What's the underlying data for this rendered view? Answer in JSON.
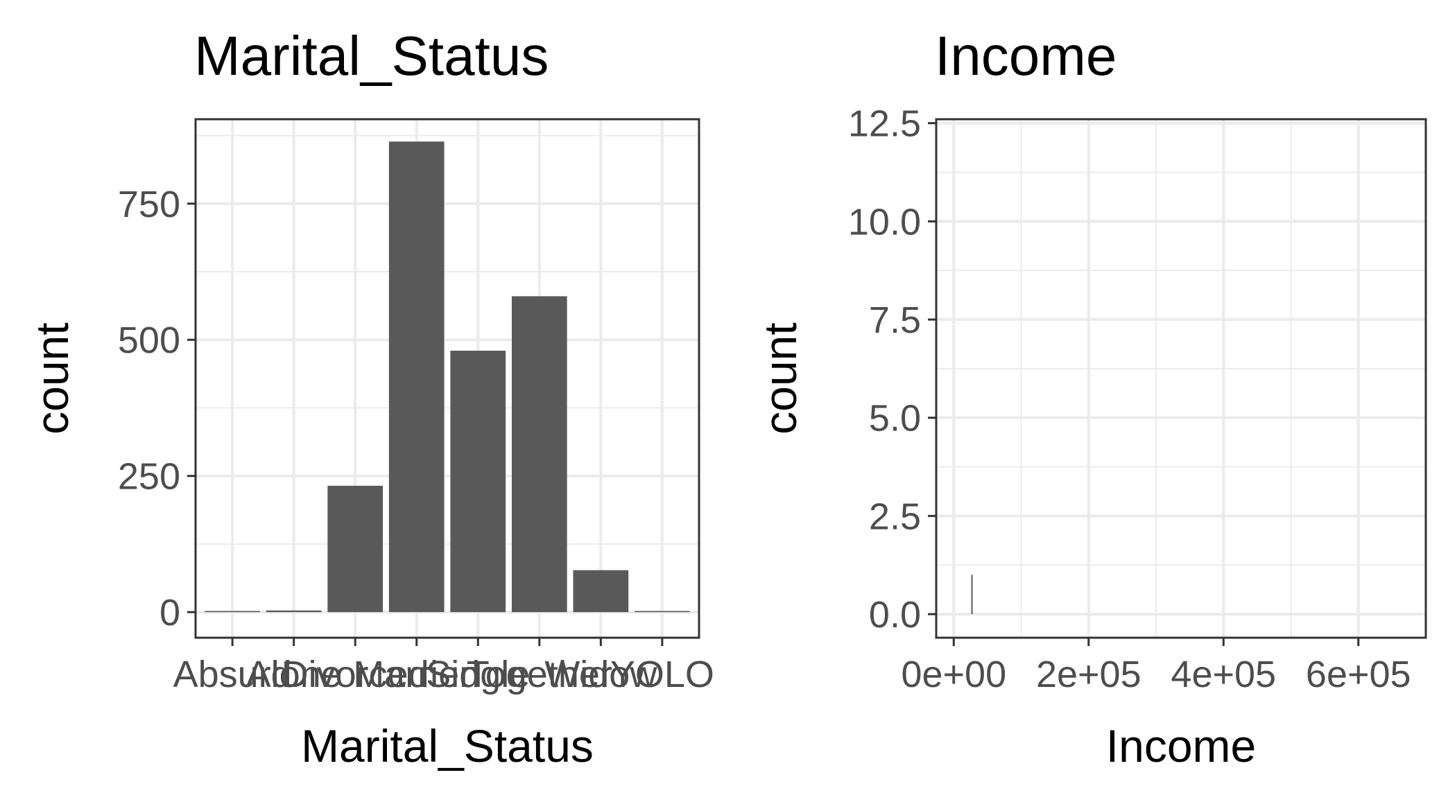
{
  "chart_data": [
    {
      "type": "bar",
      "title": "Marital_Status",
      "xlabel": "Marital_Status",
      "ylabel": "count",
      "categories": [
        "Absurd",
        "Alone",
        "Divorced",
        "Married",
        "Single",
        "Together",
        "Widow",
        "YOLO"
      ],
      "values": [
        2,
        3,
        232,
        864,
        480,
        580,
        77,
        2
      ],
      "yticks": [
        0,
        250,
        500,
        750
      ],
      "ytick_labels": [
        "0",
        "250",
        "500",
        "750"
      ],
      "ylim": [
        -47,
        905
      ],
      "grid": true,
      "bar_color": "#595959"
    },
    {
      "type": "histogram",
      "title": "Income",
      "xlabel": "Income",
      "ylabel": "count",
      "bins": [
        {
          "x": 27000,
          "count": 1
        }
      ],
      "xticks": [
        0,
        200000,
        400000,
        600000
      ],
      "xtick_labels": [
        "0e+00",
        "2e+05",
        "4e+05",
        "6e+05"
      ],
      "yticks": [
        0,
        2.5,
        5,
        7.5,
        10,
        12.5
      ],
      "ytick_labels": [
        "0.0",
        "2.5",
        "5.0",
        "7.5",
        "10.0",
        "12.5"
      ],
      "xlim": [
        -26000,
        700000
      ],
      "ylim": [
        -0.6,
        12.6
      ],
      "grid": true,
      "bar_color": "#595959"
    }
  ]
}
